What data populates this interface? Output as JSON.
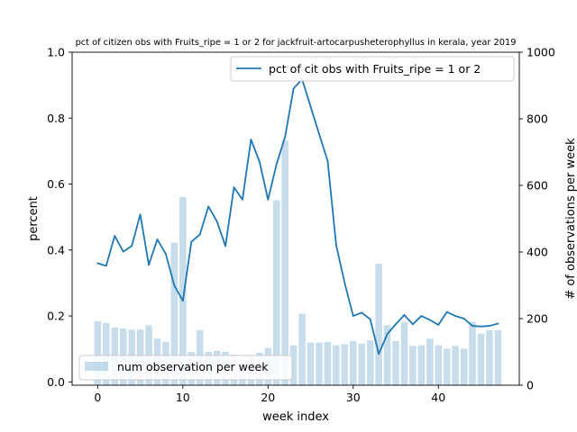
{
  "chart_data": {
    "type": "bar+line",
    "title": "pct of citizen obs with Fruits_ripe = 1 or 2 for jackfruit-artocarpusheterophyllus in kerala, year 2019",
    "xlabel": "week index",
    "ylabel_left": "percent",
    "ylabel_right": "# of observations per week",
    "xlim": [
      -3,
      49.5
    ],
    "ylim_left": [
      -0.01,
      1.0
    ],
    "ylim_right": [
      0,
      1000
    ],
    "xticks": [
      0,
      10,
      20,
      30,
      40
    ],
    "yticks_left": [
      0.0,
      0.2,
      0.4,
      0.6,
      0.8,
      1.0
    ],
    "yticks_right": [
      0,
      200,
      400,
      600,
      800,
      1000
    ],
    "x": [
      0,
      1,
      2,
      3,
      4,
      5,
      6,
      7,
      8,
      9,
      10,
      11,
      12,
      13,
      14,
      15,
      16,
      17,
      18,
      19,
      20,
      21,
      22,
      23,
      24,
      25,
      26,
      27,
      28,
      29,
      30,
      31,
      32,
      33,
      34,
      35,
      36,
      37,
      38,
      39,
      40,
      41,
      42,
      43,
      44,
      45,
      46,
      47
    ],
    "series": [
      {
        "name": "pct of cit obs with Fruits_ripe = 1 or 2",
        "kind": "line",
        "axis": "left",
        "color": "#1f77b4",
        "values": [
          0.36,
          0.352,
          0.443,
          0.395,
          0.412,
          0.508,
          0.355,
          0.432,
          0.388,
          0.292,
          0.246,
          0.425,
          0.447,
          0.532,
          0.487,
          0.412,
          0.59,
          0.553,
          0.735,
          0.668,
          0.553,
          0.66,
          0.743,
          0.89,
          0.918,
          0.835,
          0.752,
          0.67,
          0.415,
          0.3,
          0.2,
          0.21,
          0.19,
          0.085,
          0.145,
          0.175,
          0.203,
          0.175,
          0.2,
          0.188,
          0.173,
          0.212,
          0.2,
          0.192,
          0.17,
          0.168,
          0.17,
          0.177
        ]
      },
      {
        "name": "num observation per week",
        "kind": "bar",
        "axis": "right",
        "color": "#1f77b4",
        "alpha": 0.25,
        "values": [
          192,
          187,
          173,
          170,
          167,
          167,
          180,
          140,
          130,
          428,
          565,
          100,
          165,
          100,
          103,
          100,
          92,
          78,
          88,
          98,
          112,
          555,
          735,
          120,
          215,
          128,
          128,
          130,
          120,
          123,
          133,
          125,
          135,
          365,
          180,
          133,
          190,
          118,
          120,
          140,
          120,
          110,
          118,
          110,
          190,
          155,
          165,
          165
        ]
      }
    ],
    "legend": [
      {
        "label": "pct of cit obs with Fruits_ripe = 1 or 2",
        "placement": "top-right"
      },
      {
        "label": "num observation per week",
        "placement": "lower-left"
      }
    ],
    "grid": false
  }
}
